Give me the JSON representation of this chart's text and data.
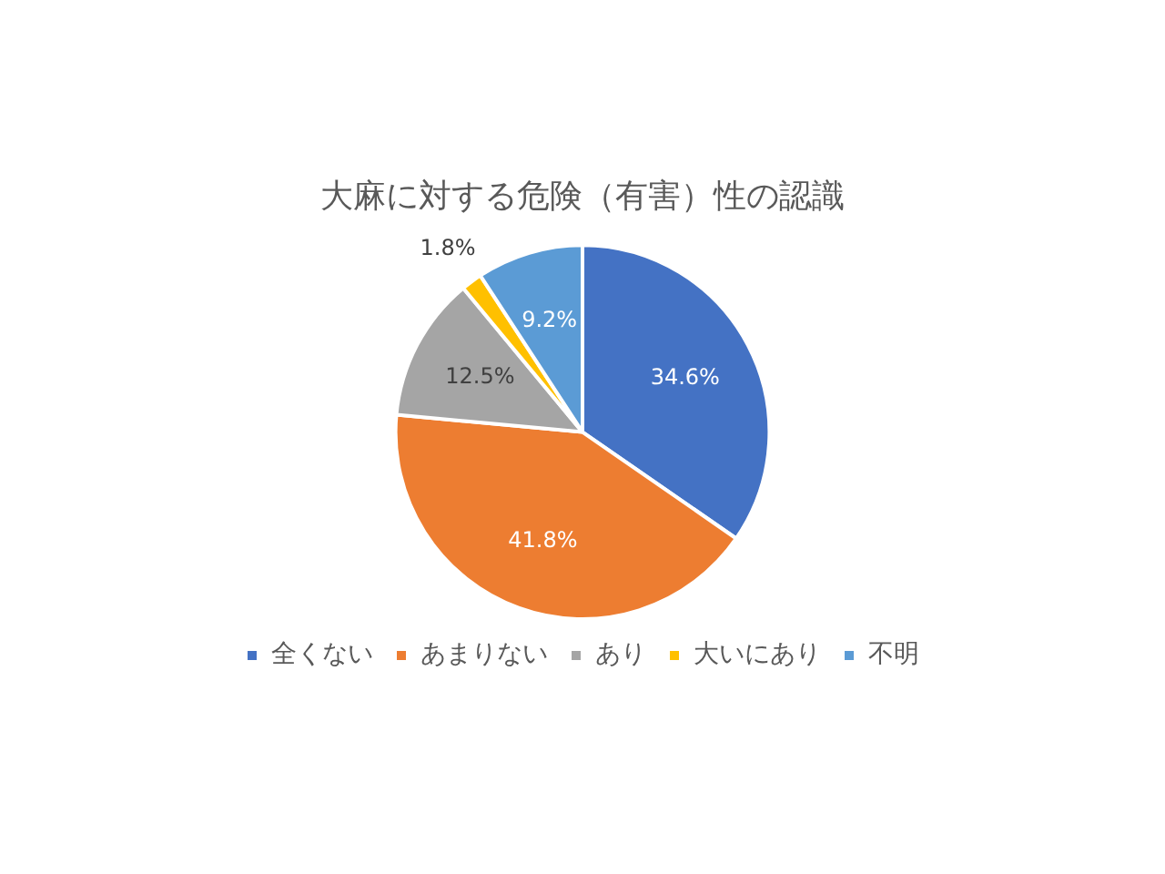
{
  "chart_data": {
    "type": "pie",
    "title": "大麻に対する危険（有害）性の認識",
    "categories": [
      "全くない",
      "あまりない",
      "あり",
      "大いにあり",
      "不明"
    ],
    "values": [
      34.6,
      41.8,
      12.5,
      1.8,
      9.2
    ],
    "colors": [
      "#4472c4",
      "#ed7d31",
      "#a5a5a5",
      "#ffc000",
      "#5b9bd5"
    ],
    "value_labels": [
      "34.6%",
      "41.8%",
      "12.5%",
      "1.8%",
      "9.2%"
    ],
    "legend": "bottom"
  }
}
